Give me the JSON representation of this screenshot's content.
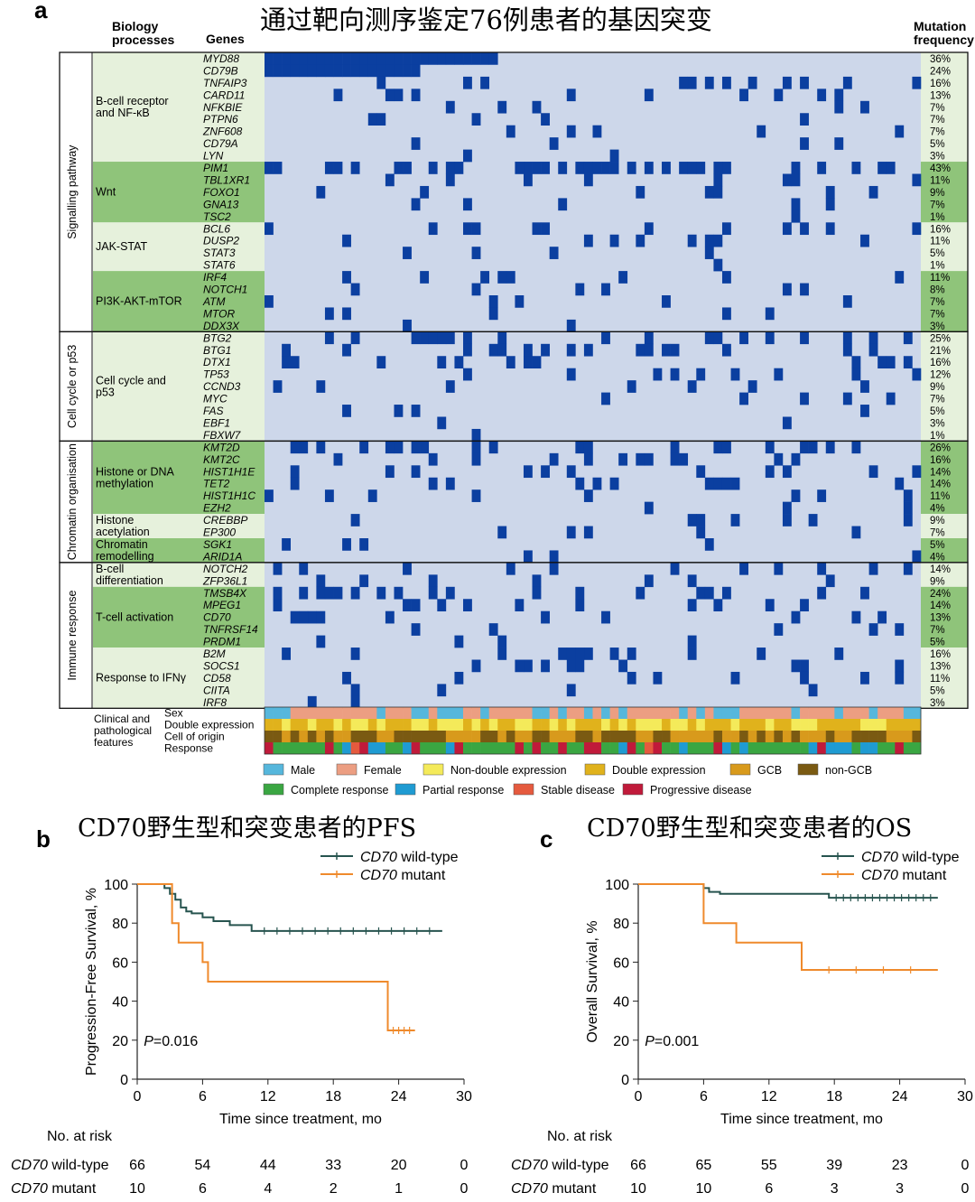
{
  "panel_a": {
    "letter": "a",
    "title": "通过靶向测序鉴定76例患者的基因突变",
    "col_biology": "Biology processes",
    "col_genes": "Genes",
    "col_freq": "Mutation frequency",
    "n_patients": 76,
    "cell_color": "#0b3fa0",
    "background_color": "#cdd7ea",
    "groups": [
      {
        "label": "Signalling pathway",
        "subgroups": [
          {
            "label": "B-cell receptor and NF-κB",
            "genes": [
              {
                "name": "MYD88",
                "freq": "36%"
              },
              {
                "name": "CD79B",
                "freq": "24%"
              },
              {
                "name": "TNFAIP3",
                "freq": "16%"
              },
              {
                "name": "CARD11",
                "freq": "13%"
              },
              {
                "name": "NFKBIE",
                "freq": "7%"
              },
              {
                "name": "PTPN6",
                "freq": "7%"
              },
              {
                "name": "ZNF608",
                "freq": "7%"
              },
              {
                "name": "CD79A",
                "freq": "5%"
              },
              {
                "name": "LYN",
                "freq": "3%"
              }
            ]
          },
          {
            "label": "Wnt",
            "genes": [
              {
                "name": "PIM1",
                "freq": "43%"
              },
              {
                "name": "TBL1XR1",
                "freq": "11%"
              },
              {
                "name": "FOXO1",
                "freq": "9%"
              },
              {
                "name": "GNA13",
                "freq": "7%"
              },
              {
                "name": "TSC2",
                "freq": "1%"
              }
            ]
          },
          {
            "label": "JAK-STAT",
            "genes": [
              {
                "name": "BCL6",
                "freq": "16%"
              },
              {
                "name": "DUSP2",
                "freq": "11%"
              },
              {
                "name": "STAT3",
                "freq": "5%"
              },
              {
                "name": "STAT6",
                "freq": "1%"
              }
            ]
          },
          {
            "label": "PI3K-AKT-mTOR",
            "genes": [
              {
                "name": "IRF4",
                "freq": "11%"
              },
              {
                "name": "NOTCH1",
                "freq": "8%"
              },
              {
                "name": "ATM",
                "freq": "7%"
              },
              {
                "name": "MTOR",
                "freq": "7%"
              },
              {
                "name": "DDX3X",
                "freq": "3%"
              }
            ]
          }
        ]
      },
      {
        "label": "Cell cycle or p53",
        "subgroups": [
          {
            "label": "Cell cycle and p53",
            "genes": [
              {
                "name": "BTG2",
                "freq": "25%"
              },
              {
                "name": "BTG1",
                "freq": "21%"
              },
              {
                "name": "DTX1",
                "freq": "16%"
              },
              {
                "name": "TP53",
                "freq": "12%"
              },
              {
                "name": "CCND3",
                "freq": "9%"
              },
              {
                "name": "MYC",
                "freq": "7%"
              },
              {
                "name": "FAS",
                "freq": "5%"
              },
              {
                "name": "EBF1",
                "freq": "3%"
              },
              {
                "name": "FBXW7",
                "freq": "1%"
              }
            ]
          }
        ]
      },
      {
        "label": "Chromatin organisation",
        "subgroups": [
          {
            "label": "Histone or DNA methylation",
            "genes": [
              {
                "name": "KMT2D",
                "freq": "26%"
              },
              {
                "name": "KMT2C",
                "freq": "16%"
              },
              {
                "name": "HIST1H1E",
                "freq": "14%"
              },
              {
                "name": "TET2",
                "freq": "14%"
              },
              {
                "name": "HIST1H1C",
                "freq": "11%"
              },
              {
                "name": "EZH2",
                "freq": "4%"
              }
            ]
          },
          {
            "label": "Histone acetylation",
            "genes": [
              {
                "name": "CREBBP",
                "freq": "9%"
              },
              {
                "name": "EP300",
                "freq": "7%"
              }
            ]
          },
          {
            "label": "Chromatin remodelling",
            "genes": [
              {
                "name": "SGK1",
                "freq": "5%"
              },
              {
                "name": "ARID1A",
                "freq": "4%"
              }
            ]
          }
        ]
      },
      {
        "label": "Immune response",
        "subgroups": [
          {
            "label": "B-cell differentiation",
            "genes": [
              {
                "name": "NOTCH2",
                "freq": "14%"
              },
              {
                "name": "ZFP36L1",
                "freq": "9%"
              }
            ]
          },
          {
            "label": "T-cell activation",
            "genes": [
              {
                "name": "TMSB4X",
                "freq": "24%"
              },
              {
                "name": "MPEG1",
                "freq": "14%"
              },
              {
                "name": "CD70",
                "freq": "13%"
              },
              {
                "name": "TNFRSF14",
                "freq": "7%"
              },
              {
                "name": "PRDM1",
                "freq": "5%"
              }
            ]
          },
          {
            "label": "Response to IFNγ",
            "genes": [
              {
                "name": "B2M",
                "freq": "16%"
              },
              {
                "name": "SOCS1",
                "freq": "13%"
              },
              {
                "name": "CD58",
                "freq": "11%"
              },
              {
                "name": "CIITA",
                "freq": "5%"
              },
              {
                "name": "IRF8",
                "freq": "3%"
              }
            ]
          }
        ]
      }
    ],
    "clinical_label": "Clinical and pathological features",
    "clinical_tracks": [
      "Sex",
      "Double expression",
      "Cell of origin",
      "Response"
    ],
    "legend": [
      {
        "label": "Male",
        "color": "#56b7dc"
      },
      {
        "label": "Female",
        "color": "#ec9e82"
      },
      {
        "label": "Non-double expression",
        "color": "#f4ea5a"
      },
      {
        "label": "Double expression",
        "color": "#e0b21c"
      },
      {
        "label": "GCB",
        "color": "#d89a1c"
      },
      {
        "label": "non-GCB",
        "color": "#7a5a12"
      },
      {
        "label": "Complete response",
        "color": "#3aa642"
      },
      {
        "label": "Partial response",
        "color": "#1f9bd2"
      },
      {
        "label": "Stable disease",
        "color": "#e55a3e"
      },
      {
        "label": "Progressive disease",
        "color": "#c01a3a"
      }
    ]
  },
  "panel_b": {
    "letter": "b",
    "title": "CD70野生型和突变患者的PFS",
    "pvalue": "P=0.016",
    "risk_title": "No. at risk",
    "risk_rows": [
      {
        "gene": "CD70",
        "label": " wild-type",
        "values": [
          "66",
          "54",
          "44",
          "33",
          "20",
          "0"
        ]
      },
      {
        "gene": "CD70",
        "label": " mutant",
        "values": [
          "10",
          "6",
          "4",
          "2",
          "1",
          "0"
        ]
      }
    ]
  },
  "panel_c": {
    "letter": "c",
    "title": "CD70野生型和突变患者的OS",
    "pvalue": "P=0.001",
    "risk_title": "No. at risk",
    "risk_rows": [
      {
        "gene": "CD70",
        "label": " wild-type",
        "values": [
          "66",
          "65",
          "55",
          "39",
          "23",
          "0"
        ]
      },
      {
        "gene": "CD70",
        "label": " mutant",
        "values": [
          "10",
          "10",
          "6",
          "3",
          "3",
          "0"
        ]
      }
    ]
  },
  "chart_data": [
    {
      "type": "heatmap",
      "title": "通过靶向测序鉴定76例患者的基因突变",
      "xlabel": "Patients (n=76)",
      "ylabel": "Genes",
      "note": "Oncoprint: one row per gene, one column per patient; blue cell = mutated. Mutation frequency per gene listed in panel_a.groups."
    },
    {
      "type": "line",
      "title": "CD70野生型和突变患者的PFS",
      "xlabel": "Time since treatment, mo",
      "ylabel": "Progression-Free Survival, %",
      "xlim": [
        0,
        30
      ],
      "ylim": [
        0,
        100
      ],
      "xticks": [
        0,
        6,
        12,
        18,
        24,
        30
      ],
      "yticks": [
        0,
        20,
        40,
        60,
        80,
        100
      ],
      "legend_position": "top-right",
      "series": [
        {
          "name": "CD70 wild-type",
          "color": "#27544f",
          "x": [
            0,
            2.5,
            3.0,
            3.5,
            4.0,
            4.5,
            5.0,
            6.0,
            7.0,
            8.5,
            10.5,
            28.0
          ],
          "y": [
            100,
            98,
            95,
            92,
            88,
            86,
            85,
            83,
            81,
            79,
            76,
            76
          ]
        },
        {
          "name": "CD70 mutant",
          "color": "#ef8a2c",
          "x": [
            0,
            3.2,
            3.8,
            6.0,
            6.5,
            23.0,
            25.5
          ],
          "y": [
            100,
            80,
            70,
            60,
            50,
            25,
            25
          ]
        }
      ]
    },
    {
      "type": "line",
      "title": "CD70野生型和突变患者的OS",
      "xlabel": "Time since treatment, mo",
      "ylabel": "Overall Survival, %",
      "xlim": [
        0,
        30
      ],
      "ylim": [
        0,
        100
      ],
      "xticks": [
        0,
        6,
        12,
        18,
        24,
        30
      ],
      "yticks": [
        0,
        20,
        40,
        60,
        80,
        100
      ],
      "legend_position": "top-right",
      "series": [
        {
          "name": "CD70 wild-type",
          "color": "#27544f",
          "x": [
            0,
            6.0,
            6.5,
            7.5,
            17.5,
            27.5
          ],
          "y": [
            100,
            98,
            96,
            95,
            93,
            93
          ]
        },
        {
          "name": "CD70 mutant",
          "color": "#ef8a2c",
          "x": [
            0,
            6.0,
            9.0,
            15.0,
            27.5
          ],
          "y": [
            100,
            80,
            70,
            56,
            56
          ]
        }
      ]
    }
  ]
}
